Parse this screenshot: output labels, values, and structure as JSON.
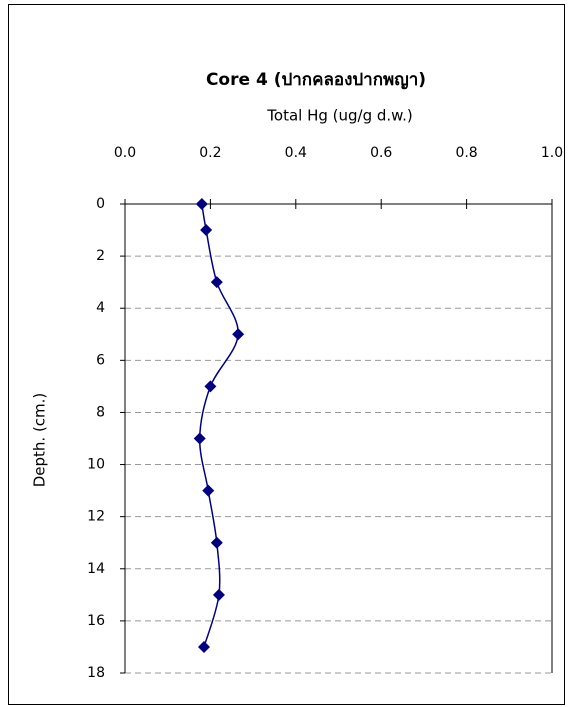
{
  "chart_data": {
    "type": "line",
    "title": "Core 4 (ปากคลองปากพญา)",
    "x_label": "Total Hg (ug/g d.w.)",
    "y_label": "Depth. (cm.)",
    "y": [
      0,
      1,
      3,
      5,
      7,
      9,
      11,
      13,
      15,
      17
    ],
    "series": [
      {
        "color": "#000080",
        "values": [
          0.18,
          0.19,
          0.215,
          0.265,
          0.2,
          0.175,
          0.195,
          0.215,
          0.22,
          0.185
        ]
      }
    ],
    "xlim": [
      0,
      1
    ],
    "xticks": [
      {
        "value": 0,
        "label": "0.0"
      },
      0.2,
      0.4,
      0.6,
      0.8,
      {
        "value": 1,
        "label": "1.0"
      }
    ],
    "ylim": [
      0,
      18
    ],
    "yticks": [
      0,
      2,
      4,
      6,
      8,
      10,
      12,
      14,
      16,
      18
    ],
    "y_inverted": true,
    "grid": true
  }
}
